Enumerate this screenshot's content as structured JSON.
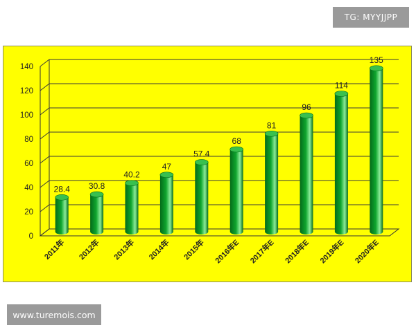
{
  "watermarks": {
    "tag": "TG: MYYJJPP",
    "site": "www.turemois.com"
  },
  "colors": {
    "background": "#FFFF00",
    "bar": "#0FA52E",
    "bar_dark": "#046B1A",
    "bar_light": "#8CEB98",
    "gridline": "#3A3A3A"
  },
  "chart_data": {
    "type": "bar",
    "categories": [
      "2011年",
      "2012年",
      "2013年",
      "2014年",
      "2015年",
      "2016年E",
      "2017年E",
      "2018年E",
      "2019年E",
      "2020年E"
    ],
    "values": [
      28.4,
      30.8,
      40.2,
      47,
      57.4,
      68,
      81,
      96,
      114,
      135
    ],
    "value_labels": [
      "28.4",
      "30.8",
      "40.2",
      "47",
      "57.4",
      "68",
      "81",
      "96",
      "114",
      "135"
    ],
    "y_ticks": [
      0,
      20,
      40,
      60,
      80,
      100,
      120,
      140
    ],
    "ylim": [
      0,
      140
    ],
    "grid": true,
    "bar_style": "3d-cylinder",
    "legend": "none"
  }
}
